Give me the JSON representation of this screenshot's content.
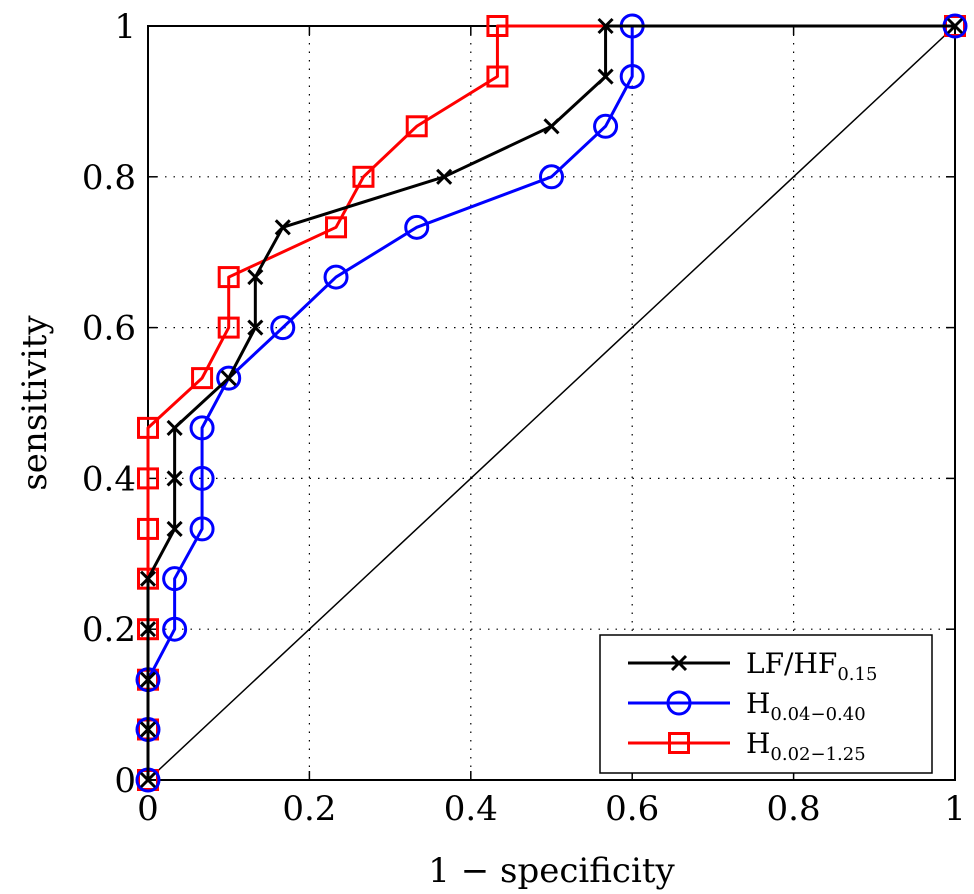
{
  "chart_data": {
    "type": "line",
    "title": "",
    "xlabel": "1 − specificity",
    "ylabel": "sensitivity",
    "xlim": [
      0,
      1
    ],
    "ylim": [
      0,
      1
    ],
    "xticks": [
      0,
      0.2,
      0.4,
      0.6,
      0.8,
      1
    ],
    "yticks": [
      0,
      0.2,
      0.4,
      0.6,
      0.8,
      1
    ],
    "xtick_labels": [
      "0",
      "0.2",
      "0.4",
      "0.6",
      "0.8",
      "1"
    ],
    "ytick_labels": [
      "0",
      "0.2",
      "0.4",
      "0.6",
      "0.8",
      "1"
    ],
    "grid": true,
    "grid_style": "dotted",
    "legend_position": "bottom-right",
    "series": [
      {
        "name": "LF/HF",
        "name_sub": "0.15",
        "color": "#000000",
        "marker": "x",
        "x": [
          0,
          0,
          0,
          0,
          0,
          0.033,
          0.033,
          0.033,
          0.1,
          0.133,
          0.133,
          0.167,
          0.367,
          0.5,
          0.567,
          0.567,
          1
        ],
        "y": [
          0,
          0.067,
          0.133,
          0.2,
          0.267,
          0.333,
          0.4,
          0.467,
          0.533,
          0.6,
          0.667,
          0.733,
          0.8,
          0.867,
          0.933,
          1,
          1
        ]
      },
      {
        "name": "H",
        "name_sub": "0.04−0.40",
        "color": "#0000ff",
        "marker": "o",
        "x": [
          0,
          0,
          0,
          0.033,
          0.033,
          0.067,
          0.067,
          0.067,
          0.1,
          0.167,
          0.233,
          0.333,
          0.5,
          0.567,
          0.6,
          0.6,
          1
        ],
        "y": [
          0,
          0.067,
          0.133,
          0.2,
          0.267,
          0.333,
          0.4,
          0.467,
          0.533,
          0.6,
          0.667,
          0.733,
          0.8,
          0.867,
          0.933,
          1,
          1
        ]
      },
      {
        "name": "H",
        "name_sub": "0.02−1.25",
        "color": "#ff0000",
        "marker": "s",
        "x": [
          0,
          0,
          0,
          0,
          0,
          0,
          0,
          0,
          0.067,
          0.1,
          0.1,
          0.233,
          0.267,
          0.333,
          0.433,
          0.433,
          1
        ],
        "y": [
          0,
          0.067,
          0.133,
          0.2,
          0.267,
          0.333,
          0.4,
          0.467,
          0.533,
          0.6,
          0.667,
          0.733,
          0.8,
          0.867,
          0.933,
          1,
          1
        ]
      }
    ],
    "reference_line": {
      "x": [
        0,
        1
      ],
      "y": [
        0,
        1
      ],
      "color": "#000000"
    }
  }
}
